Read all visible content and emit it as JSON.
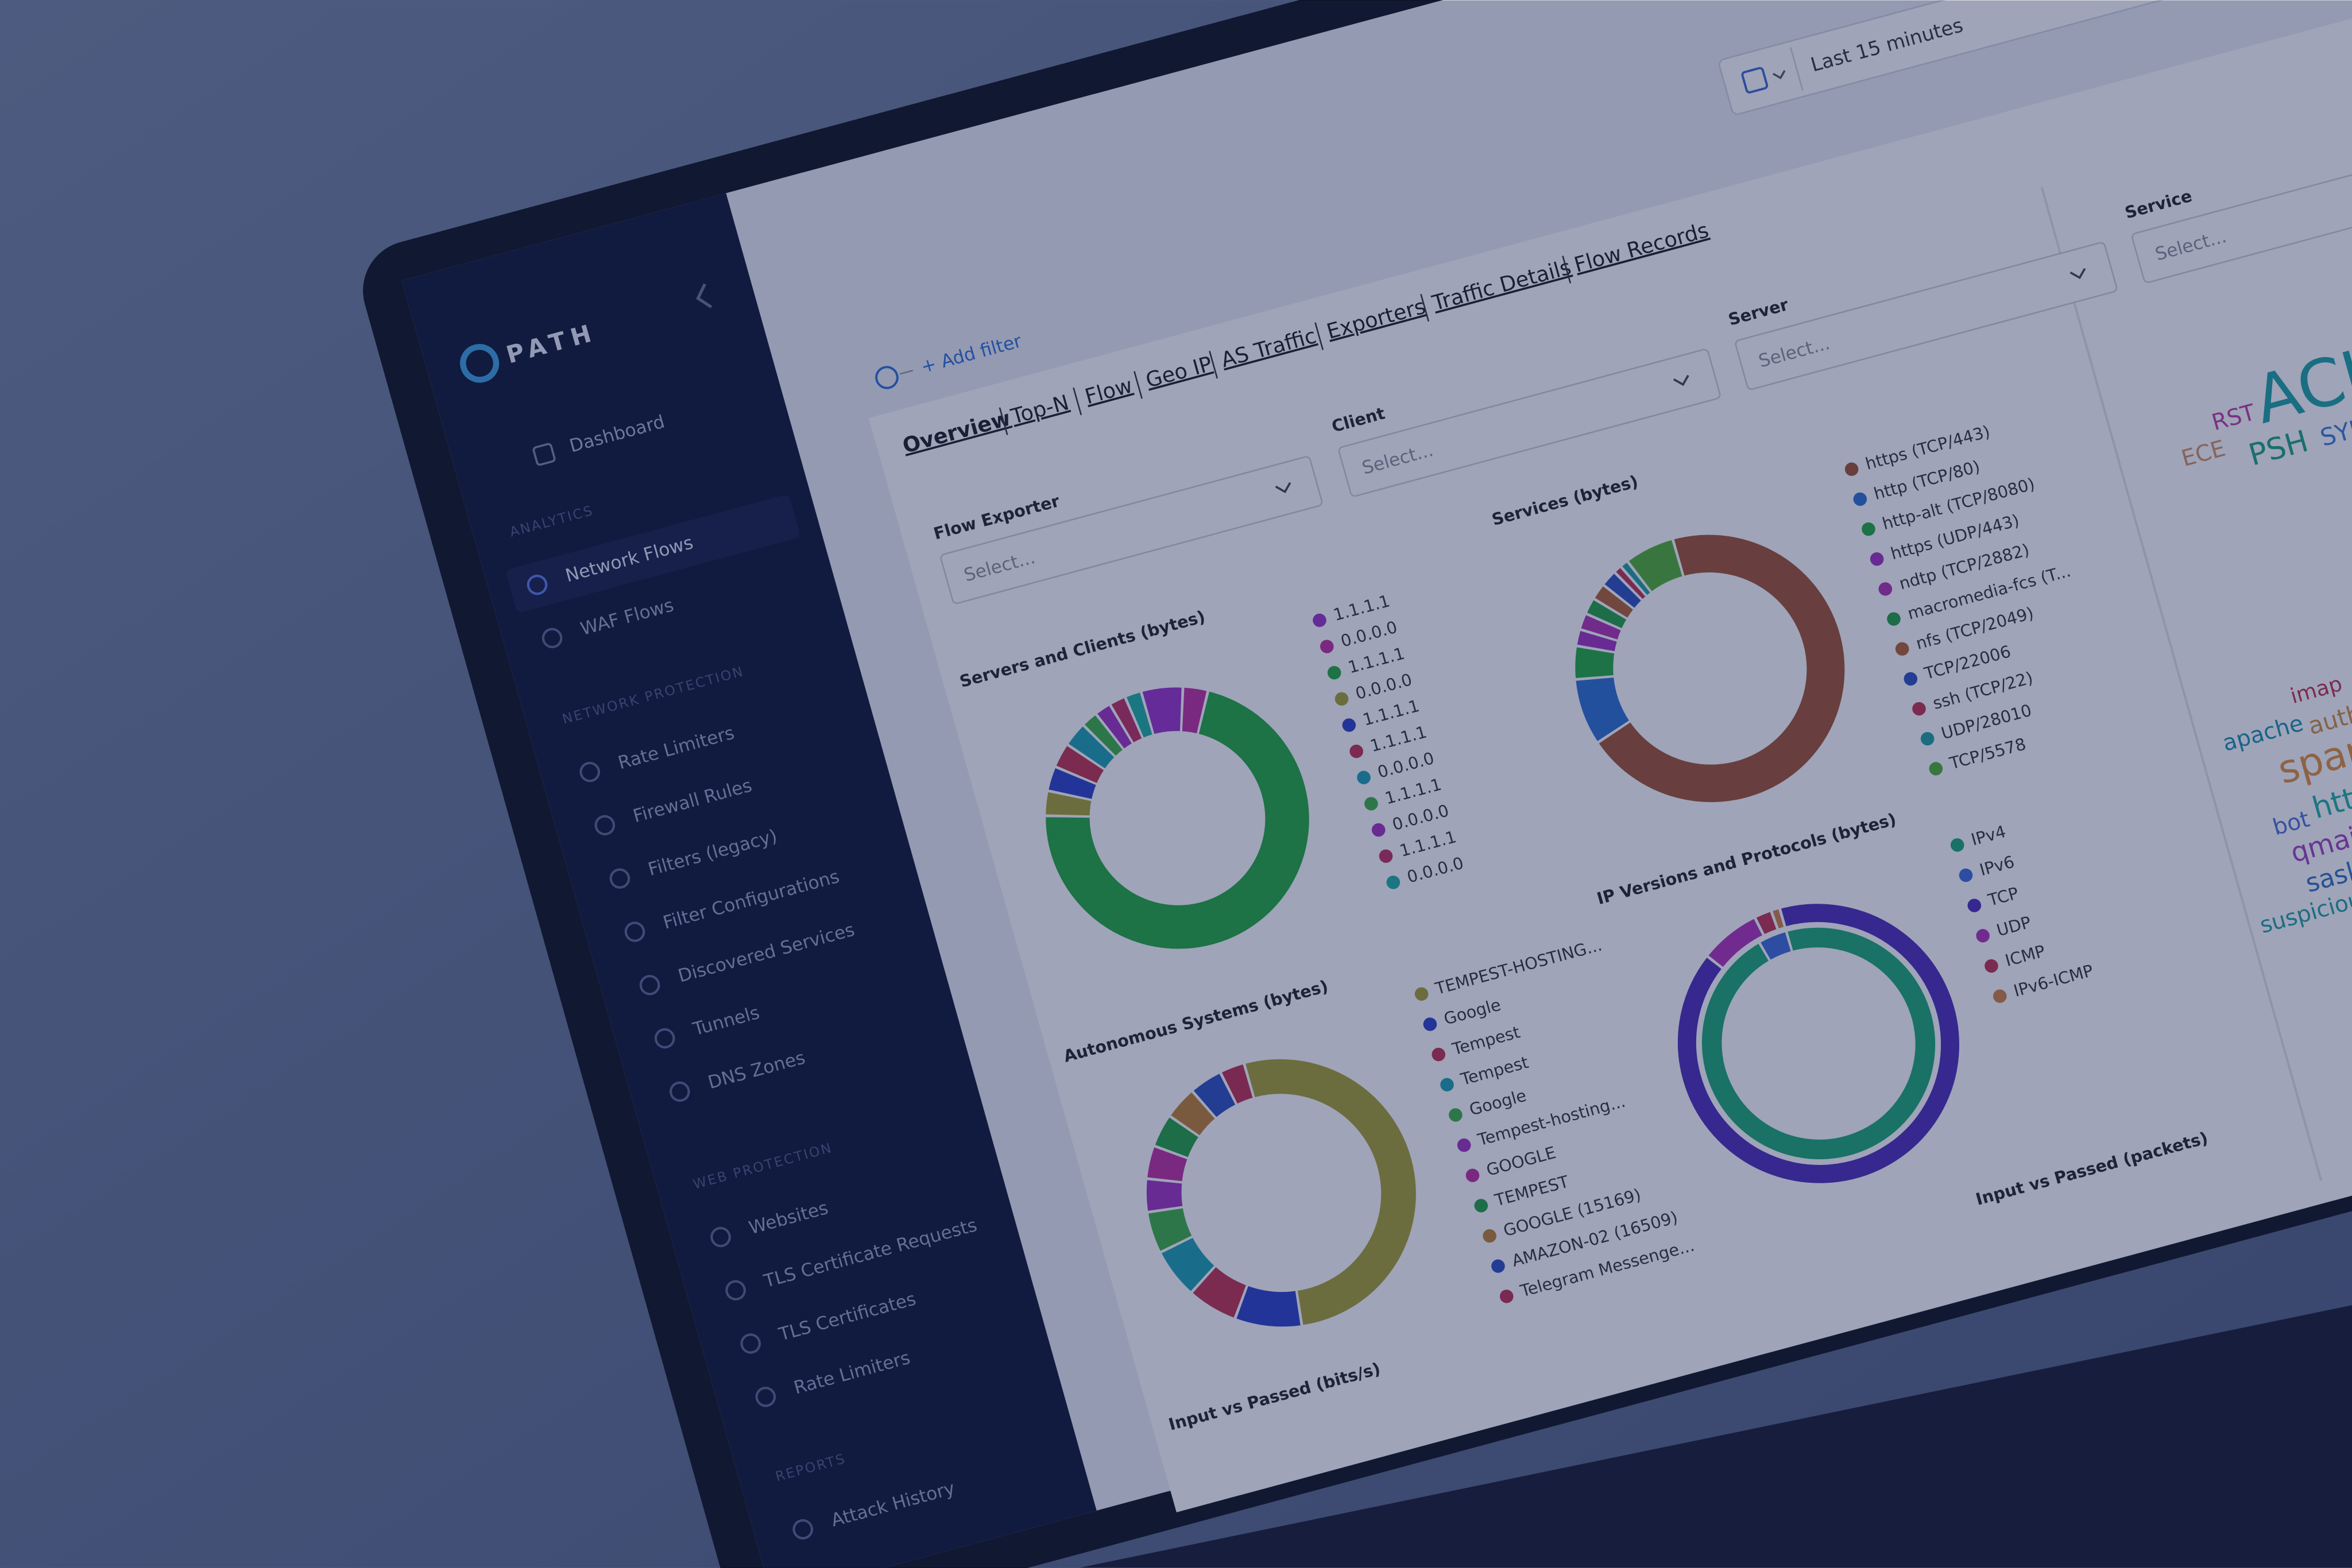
{
  "sidebar": {
    "brand": "PATH",
    "top": [
      "Dashboard"
    ],
    "sections": [
      {
        "title": "ANALYTICS",
        "items": [
          "Network Flows",
          "WAF Flows"
        ]
      },
      {
        "title": "NETWORK PROTECTION",
        "items": [
          "Rate Limiters",
          "Firewall Rules",
          "Filters (legacy)",
          "Filter Configurations",
          "Discovered Services",
          "Tunnels",
          "DNS Zones"
        ]
      },
      {
        "title": "WEB PROTECTION",
        "items": [
          "Websites",
          "TLS Certificate Requests",
          "TLS Certificates",
          "Rate Limiters"
        ]
      },
      {
        "title": "REPORTS",
        "items": [
          "Attack History"
        ]
      }
    ]
  },
  "toolbar": {
    "time_range": "Last 15 minutes"
  },
  "filter_bar": {
    "add_filter": "+ Add filter"
  },
  "tabs": [
    "Overview",
    "Top-N",
    "Flow",
    "Geo IP",
    "AS Traffic",
    "Exporters",
    "Traffic Details",
    "Flow Records"
  ],
  "filters": [
    {
      "label": "Flow Exporter",
      "placeholder": "Select..."
    },
    {
      "label": "Client",
      "placeholder": "Select..."
    },
    {
      "label": "Server",
      "placeholder": "Select..."
    },
    {
      "label": "Service",
      "placeholder": "Select..."
    }
  ],
  "charts": [
    {
      "type": "donut",
      "title": "Servers and Clients (bytes)",
      "items": [
        {
          "name": "1.1.1.1",
          "color": "#9b30c8",
          "value": 5
        },
        {
          "name": "0.0.0.0",
          "color": "#c02ca0",
          "value": 3
        },
        {
          "name": "1.1.1.1",
          "color": "#1faa3c",
          "value": 70
        },
        {
          "name": "0.0.0.0",
          "color": "#a8a030",
          "value": 3
        },
        {
          "name": "1.1.1.1",
          "color": "#2a3fc8",
          "value": 3
        },
        {
          "name": "1.1.1.1",
          "color": "#c0304a",
          "value": 3
        },
        {
          "name": "0.0.0.0",
          "color": "#1aa0b0",
          "value": 3
        },
        {
          "name": "1.1.1.1",
          "color": "#3cb040",
          "value": 2
        },
        {
          "name": "0.0.0.0",
          "color": "#a030c0",
          "value": 2
        },
        {
          "name": "1.1.1.1",
          "color": "#c02c60",
          "value": 2
        },
        {
          "name": "0.0.0.0",
          "color": "#1ab0a0",
          "value": 2
        }
      ]
    },
    {
      "type": "donut",
      "title": "Services (bytes)",
      "items": [
        {
          "name": "https (TCP/443)",
          "color": "#a0522d",
          "value": 70
        },
        {
          "name": "http (TCP/80)",
          "color": "#2a6fd0",
          "value": 8
        },
        {
          "name": "http-alt (TCP/8080)",
          "color": "#1faa3c",
          "value": 4
        },
        {
          "name": "https (UDP/443)",
          "color": "#a030c0",
          "value": 2
        },
        {
          "name": "ndtp (TCP/2882)",
          "color": "#b030b0",
          "value": 2
        },
        {
          "name": "macromedia-fcs (T...",
          "color": "#20a040",
          "value": 2
        },
        {
          "name": "nfs (TCP/2049)",
          "color": "#b0602d",
          "value": 2
        },
        {
          "name": "TCP/22006",
          "color": "#2a4fc0",
          "value": 2
        },
        {
          "name": "ssh (TCP/22)",
          "color": "#c0304a",
          "value": 1
        },
        {
          "name": "UDP/28010",
          "color": "#1aa0a0",
          "value": 1
        },
        {
          "name": "TCP/5578",
          "color": "#50b030",
          "value": 6
        }
      ]
    },
    {
      "type": "donut",
      "title": "Autonomous Systems (bytes)",
      "items": [
        {
          "name": "TEMPEST-HOSTING...",
          "color": "#a8a030",
          "value": 52
        },
        {
          "name": "Google",
          "color": "#2a3fc8",
          "value": 8
        },
        {
          "name": "Tempest",
          "color": "#c0304a",
          "value": 6
        },
        {
          "name": "Tempest",
          "color": "#1aa0b0",
          "value": 6
        },
        {
          "name": "Google",
          "color": "#3cb040",
          "value": 5
        },
        {
          "name": "Tempest-hosting...",
          "color": "#a030c0",
          "value": 4
        },
        {
          "name": "GOOGLE",
          "color": "#c02ca0",
          "value": 4
        },
        {
          "name": "TEMPEST",
          "color": "#20a040",
          "value": 4
        },
        {
          "name": "GOOGLE (15169)",
          "color": "#c08030",
          "value": 4
        },
        {
          "name": "AMAZON-02 (16509)",
          "color": "#2a4fc0",
          "value": 4
        },
        {
          "name": "Telegram Messenge...",
          "color": "#c02c50",
          "value": 3
        }
      ]
    },
    {
      "type": "donut",
      "title": "IP Versions and Protocols (bytes)",
      "items": [
        {
          "name": "IPv4",
          "color": "#1aa870",
          "value": 96,
          "ring": "inner"
        },
        {
          "name": "IPv6",
          "color": "#3a6ad8",
          "value": 4,
          "ring": "inner"
        },
        {
          "name": "TCP",
          "color": "#4a2ab8",
          "value": 90,
          "ring": "outer"
        },
        {
          "name": "UDP",
          "color": "#b030b8",
          "value": 7,
          "ring": "outer"
        },
        {
          "name": "ICMP",
          "color": "#c0304a",
          "value": 2,
          "ring": "outer"
        },
        {
          "name": "IPv6-ICMP",
          "color": "#d08040",
          "value": 1,
          "ring": "outer"
        }
      ]
    }
  ],
  "panels": [
    "Input vs Passed (bits/s)",
    "Input vs Passed (packets)"
  ],
  "word_cloud": [
    {
      "word": "ACK",
      "color": "#1aa3a3",
      "value": 44
    },
    {
      "word": "RST",
      "color": "#c03aa0",
      "value": 15
    },
    {
      "word": "ECE",
      "color": "#d8905a",
      "value": 15
    },
    {
      "word": "PSH",
      "color": "#1aa380",
      "value": 20
    },
    {
      "word": "SYN",
      "color": "#3a7ad8",
      "value": 16
    },
    {
      "word": "imap",
      "color": "#c0304a",
      "value": 14
    },
    {
      "word": "apache",
      "color": "#1a90b0",
      "value": 15
    },
    {
      "word": "auth",
      "color": "#d09040",
      "value": 16
    },
    {
      "word": "spam",
      "color": "#e0903a",
      "value": 26
    },
    {
      "word": "bot",
      "color": "#4a70d8",
      "value": 15
    },
    {
      "word": "http",
      "color": "#20b0a0",
      "value": 20
    },
    {
      "word": "qmail",
      "color": "#a040c0",
      "value": 18
    },
    {
      "word": "sasl",
      "color": "#3070c0",
      "value": 17
    },
    {
      "word": "suspicious",
      "color": "#20a0a0",
      "value": 15
    }
  ]
}
